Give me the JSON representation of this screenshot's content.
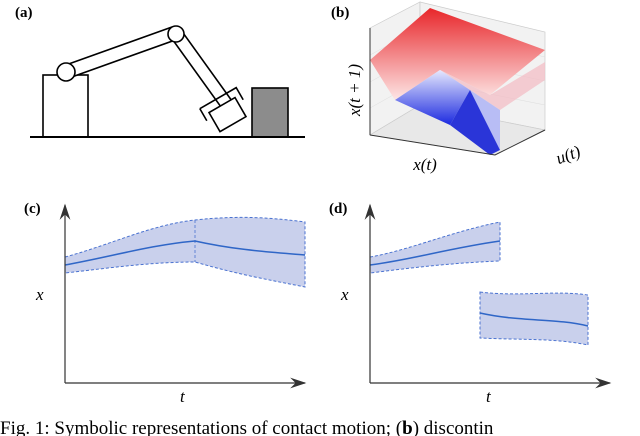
{
  "panels": [
    {
      "label": "(a)"
    },
    {
      "label": "(b)",
      "x_label": "x(t)",
      "u_label": "u(t)",
      "z_label": "x(t + 1)"
    },
    {
      "label": "(c)",
      "y_label": "x",
      "x_label": "t"
    },
    {
      "label": "(d)",
      "y_label": "x",
      "x_label": "t"
    }
  ],
  "caption": {
    "text": "Fig. 1: Symbolic representations of contact motion; (",
    "bold": "b",
    "rest": ") discontin"
  }
}
